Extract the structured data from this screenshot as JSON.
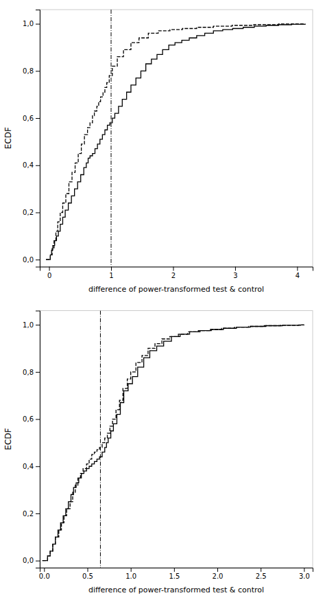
{
  "chart_data": [
    {
      "type": "step",
      "color": "#000000",
      "xlabel": "difference of power-transformed test & control",
      "ylabel": "ECDF",
      "xlim": [
        -0.15,
        4.25
      ],
      "ylim": [
        -0.03,
        1.06
      ],
      "xticks": [
        0,
        1,
        2,
        3,
        4
      ],
      "yticks": [
        {
          "value": 0.0,
          "label": "0,0"
        },
        {
          "value": 0.2,
          "label": "0,2"
        },
        {
          "value": 0.4,
          "label": "0,4"
        },
        {
          "value": 0.6,
          "label": "0,6"
        },
        {
          "value": 0.8,
          "label": "0,8"
        },
        {
          "value": 1.0,
          "label": "1,0"
        }
      ],
      "vline": 1.0,
      "series": [
        {
          "line_style": "solid",
          "x": [
            -0.05,
            0.02,
            0.04,
            0.06,
            0.09,
            0.12,
            0.15,
            0.18,
            0.22,
            0.26,
            0.31,
            0.36,
            0.41,
            0.46,
            0.51,
            0.56,
            0.6,
            0.63,
            0.66,
            0.7,
            0.74,
            0.78,
            0.82,
            0.86,
            0.9,
            0.94,
            0.98,
            1.02,
            1.06,
            1.12,
            1.18,
            1.25,
            1.32,
            1.4,
            1.48,
            1.56,
            1.65,
            1.74,
            1.83,
            1.93,
            2.03,
            2.14,
            2.26,
            2.38,
            2.51,
            2.65,
            2.8,
            2.96,
            3.13,
            3.31,
            3.5,
            3.7,
            3.91,
            4.13
          ],
          "values": [
            0.0,
            0.02,
            0.04,
            0.06,
            0.08,
            0.1,
            0.12,
            0.15,
            0.18,
            0.21,
            0.24,
            0.27,
            0.3,
            0.33,
            0.36,
            0.39,
            0.41,
            0.43,
            0.44,
            0.45,
            0.47,
            0.49,
            0.51,
            0.53,
            0.55,
            0.57,
            0.58,
            0.6,
            0.62,
            0.65,
            0.68,
            0.71,
            0.74,
            0.77,
            0.8,
            0.83,
            0.85,
            0.87,
            0.89,
            0.91,
            0.92,
            0.93,
            0.94,
            0.95,
            0.96,
            0.97,
            0.975,
            0.98,
            0.985,
            0.99,
            0.993,
            0.996,
            0.998,
            1.0
          ]
        },
        {
          "line_style": "dashed",
          "x": [
            -0.05,
            0.02,
            0.05,
            0.08,
            0.11,
            0.14,
            0.18,
            0.22,
            0.27,
            0.32,
            0.37,
            0.42,
            0.47,
            0.52,
            0.57,
            0.62,
            0.66,
            0.7,
            0.73,
            0.77,
            0.8,
            0.83,
            0.87,
            0.9,
            0.93,
            0.97,
            1.02,
            1.1,
            1.2,
            1.32,
            1.45,
            1.6,
            1.76,
            1.95,
            2.15,
            2.38,
            2.65,
            2.95,
            3.3,
            3.7,
            4.1
          ],
          "values": [
            0.0,
            0.02,
            0.05,
            0.08,
            0.12,
            0.16,
            0.2,
            0.24,
            0.28,
            0.33,
            0.37,
            0.41,
            0.45,
            0.49,
            0.53,
            0.56,
            0.58,
            0.61,
            0.63,
            0.65,
            0.67,
            0.69,
            0.71,
            0.73,
            0.75,
            0.78,
            0.82,
            0.86,
            0.89,
            0.92,
            0.94,
            0.96,
            0.97,
            0.975,
            0.98,
            0.985,
            0.99,
            0.993,
            0.996,
            0.999,
            1.0
          ]
        }
      ]
    },
    {
      "type": "step",
      "color": "#000000",
      "xlabel": "difference of power-transformed test & control",
      "ylabel": "ECDF",
      "xlim": [
        -0.05,
        3.1
      ],
      "ylim": [
        -0.03,
        1.06
      ],
      "xticks": [
        {
          "value": 0.0,
          "label": "0.0"
        },
        0.5,
        {
          "value": 1.0,
          "label": "1.0"
        },
        1.5,
        {
          "value": 2.0,
          "label": "2.0"
        },
        2.5,
        {
          "value": 3.0,
          "label": "3.0"
        }
      ],
      "yticks": [
        {
          "value": 0.0,
          "label": "0,0"
        },
        {
          "value": 0.2,
          "label": "0,2"
        },
        {
          "value": 0.4,
          "label": "0,4"
        },
        {
          "value": 0.6,
          "label": "0,6"
        },
        {
          "value": 0.8,
          "label": "0,8"
        },
        {
          "value": 1.0,
          "label": "1,0"
        }
      ],
      "vline": 0.65,
      "series": [
        {
          "line_style": "solid",
          "x": [
            -0.02,
            0.04,
            0.07,
            0.1,
            0.13,
            0.16,
            0.19,
            0.22,
            0.25,
            0.28,
            0.31,
            0.34,
            0.37,
            0.4,
            0.43,
            0.46,
            0.49,
            0.52,
            0.55,
            0.58,
            0.61,
            0.64,
            0.67,
            0.7,
            0.72,
            0.74,
            0.77,
            0.8,
            0.84,
            0.88,
            0.92,
            0.97,
            1.02,
            1.08,
            1.15,
            1.22,
            1.3,
            1.38,
            1.47,
            1.57,
            1.68,
            1.8,
            1.93,
            2.07,
            2.22,
            2.38,
            2.56,
            2.75,
            2.96,
            3.0
          ],
          "values": [
            0.0,
            0.02,
            0.04,
            0.07,
            0.1,
            0.13,
            0.16,
            0.19,
            0.22,
            0.25,
            0.28,
            0.31,
            0.33,
            0.35,
            0.37,
            0.38,
            0.39,
            0.4,
            0.41,
            0.42,
            0.43,
            0.44,
            0.46,
            0.48,
            0.5,
            0.52,
            0.55,
            0.58,
            0.62,
            0.67,
            0.72,
            0.75,
            0.78,
            0.82,
            0.86,
            0.89,
            0.91,
            0.93,
            0.95,
            0.96,
            0.97,
            0.975,
            0.98,
            0.985,
            0.99,
            0.993,
            0.996,
            0.998,
            0.999,
            1.0
          ]
        },
        {
          "line_style": "dashed",
          "x": [
            -0.02,
            0.04,
            0.07,
            0.1,
            0.13,
            0.17,
            0.2,
            0.23,
            0.26,
            0.3,
            0.33,
            0.36,
            0.39,
            0.42,
            0.45,
            0.49,
            0.52,
            0.55,
            0.58,
            0.61,
            0.64,
            0.67,
            0.7,
            0.73,
            0.76,
            0.79,
            0.83,
            0.87,
            0.91,
            0.96,
            1.0,
            1.06,
            1.13,
            1.2,
            1.28,
            1.36,
            1.45,
            1.55,
            1.66,
            1.78,
            1.91,
            2.05,
            2.2,
            2.36,
            2.54,
            2.73,
            2.94,
            3.0
          ],
          "values": [
            0.0,
            0.02,
            0.04,
            0.07,
            0.1,
            0.13,
            0.16,
            0.19,
            0.22,
            0.25,
            0.29,
            0.32,
            0.35,
            0.37,
            0.39,
            0.41,
            0.43,
            0.45,
            0.46,
            0.47,
            0.48,
            0.5,
            0.52,
            0.54,
            0.57,
            0.6,
            0.64,
            0.68,
            0.73,
            0.77,
            0.8,
            0.84,
            0.87,
            0.9,
            0.92,
            0.94,
            0.95,
            0.96,
            0.97,
            0.975,
            0.98,
            0.985,
            0.99,
            0.993,
            0.996,
            0.998,
            0.999,
            1.0
          ]
        }
      ]
    }
  ]
}
